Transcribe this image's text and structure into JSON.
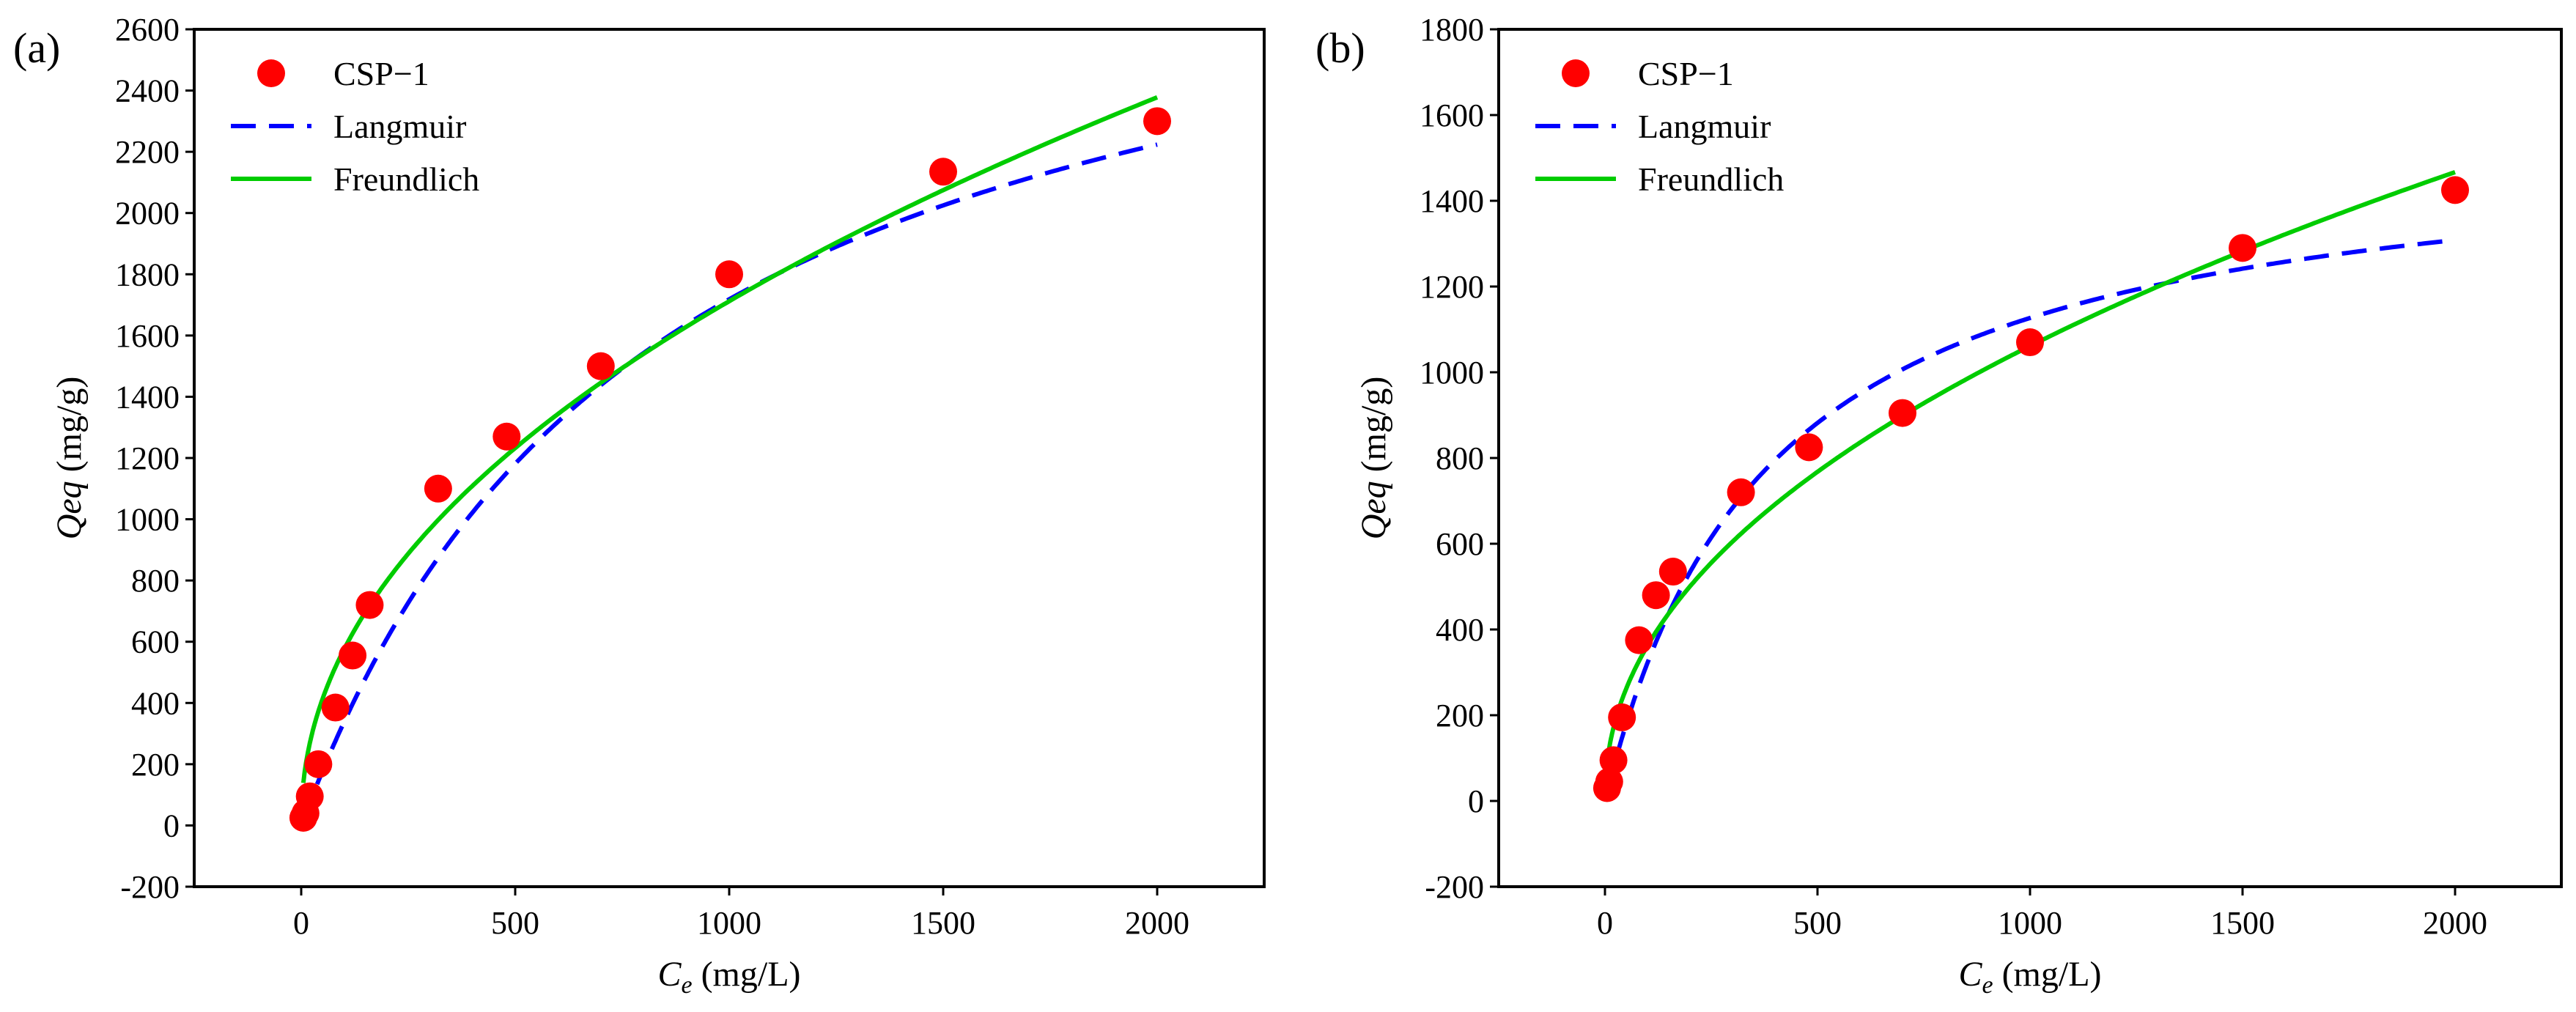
{
  "chart_data": [
    {
      "panel_label": "(a)",
      "type": "scatter",
      "xlabel": "C",
      "xlabel_sub": "e",
      "xlabel_unit": " (mg/L)",
      "ylabel": "Qeq",
      "ylabel_unit": " (mg/g)",
      "xlim": [
        -250,
        2250
      ],
      "ylim": [
        -200,
        2600
      ],
      "xticks": [
        0,
        500,
        1000,
        1500,
        2000
      ],
      "yticks": [
        -200,
        0,
        200,
        400,
        600,
        800,
        1000,
        1200,
        1400,
        1600,
        1800,
        2000,
        2200,
        2400,
        2600
      ],
      "legend_position": "top-left",
      "legend": [
        {
          "label": "CSP−1",
          "kind": "marker"
        },
        {
          "label": "Langmuir",
          "kind": "dashed"
        },
        {
          "label": "Freundlich",
          "kind": "solid"
        }
      ],
      "series": [
        {
          "name": "CSP−1",
          "kind": "points",
          "color": "#ff0000",
          "x": [
            5,
            10,
            20,
            40,
            80,
            120,
            160,
            320,
            480,
            700,
            1000,
            1500,
            2000
          ],
          "y": [
            25,
            40,
            95,
            200,
            385,
            555,
            720,
            1100,
            1270,
            1500,
            1800,
            2135,
            2300
          ]
        },
        {
          "name": "Langmuir",
          "kind": "line",
          "dash": true,
          "color": "#0000ff",
          "model": "langmuir",
          "params": {
            "qm": 3150,
            "K": 0.0012
          }
        },
        {
          "name": "Freundlich",
          "kind": "line",
          "dash": false,
          "color": "#00cc00",
          "model": "freundlich",
          "params": {
            "K": 64.79,
            "n": 0.474
          }
        }
      ]
    },
    {
      "panel_label": "(b)",
      "type": "scatter",
      "xlabel": "C",
      "xlabel_sub": "e",
      "xlabel_unit": " (mg/L)",
      "ylabel": "Qeq",
      "ylabel_unit": " (mg/g)",
      "xlim": [
        -250,
        2250
      ],
      "ylim": [
        -200,
        1800
      ],
      "xticks": [
        0,
        500,
        1000,
        1500,
        2000
      ],
      "yticks": [
        -200,
        0,
        200,
        400,
        600,
        800,
        1000,
        1200,
        1400,
        1600,
        1800
      ],
      "legend_position": "top-left",
      "legend": [
        {
          "label": "CSP−1",
          "kind": "marker"
        },
        {
          "label": "Langmuir",
          "kind": "dashed"
        },
        {
          "label": "Freundlich",
          "kind": "solid"
        }
      ],
      "series": [
        {
          "name": "CSP−1",
          "kind": "points",
          "color": "#ff0000",
          "x": [
            5,
            10,
            20,
            40,
            80,
            120,
            160,
            320,
            480,
            700,
            1000,
            1500,
            2000
          ],
          "y": [
            30,
            45,
            95,
            195,
            375,
            480,
            535,
            720,
            825,
            905,
            1070,
            1290,
            1425
          ]
        },
        {
          "name": "Langmuir",
          "kind": "line",
          "dash": true,
          "color": "#0000ff",
          "model": "langmuir",
          "params": {
            "qm": 1560,
            "K": 0.0026
          }
        },
        {
          "name": "Freundlich",
          "kind": "line",
          "dash": false,
          "color": "#00cc00",
          "model": "freundlich",
          "params": {
            "K": 42.15,
            "n": 0.467
          }
        }
      ]
    }
  ]
}
